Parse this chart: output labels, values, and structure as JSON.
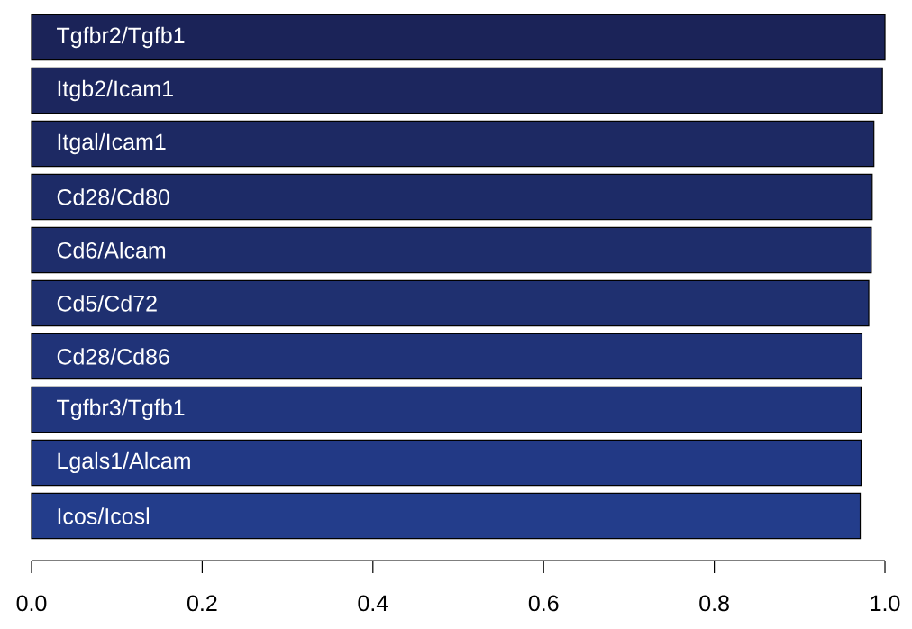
{
  "chart_data": {
    "type": "bar",
    "orientation": "horizontal",
    "categories": [
      "Tgfbr2/Tgfb1",
      "Itgb2/Icam1",
      "Itgal/Icam1",
      "Cd28/Cd80",
      "Cd6/Alcam",
      "Cd5/Cd72",
      "Cd28/Cd86",
      "Tgfbr3/Tgfb1",
      "Lgals1/Alcam",
      "Icos/Icosl"
    ],
    "values": [
      1.0,
      0.997,
      0.987,
      0.985,
      0.984,
      0.981,
      0.973,
      0.972,
      0.972,
      0.971
    ],
    "colors": [
      "#1b2358",
      "#1c265e",
      "#1d2963",
      "#1d2b67",
      "#1e2d6b",
      "#1f3070",
      "#203378",
      "#21367e",
      "#223985",
      "#233d8b"
    ],
    "xlim": [
      0,
      1
    ],
    "xticks": [
      {
        "value": 0,
        "label": "0.0"
      },
      {
        "value": 0.2,
        "label": "0.2"
      },
      {
        "value": 0.4,
        "label": "0.4"
      },
      {
        "value": 0.6,
        "label": "0.6"
      },
      {
        "value": 0.8,
        "label": "0.8"
      },
      {
        "value": 1,
        "label": "1.0"
      }
    ],
    "grid": false
  }
}
